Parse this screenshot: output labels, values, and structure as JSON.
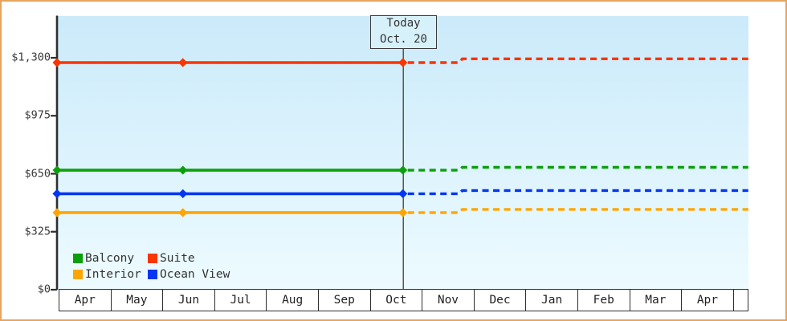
{
  "window": {
    "border_color": "#e8a45e",
    "plot_bg_top": "#cbeafa",
    "plot_bg_bottom": "#edfbff",
    "axis_color": "#2e2e2e",
    "text_color": "#3a3a3a"
  },
  "chart_data": {
    "type": "line",
    "title": "",
    "x_axis": {
      "unit": "month",
      "categories": [
        "Apr",
        "May",
        "Jun",
        "Jul",
        "Aug",
        "Sep",
        "Oct",
        "Nov",
        "Dec",
        "Jan",
        "Feb",
        "Mar",
        "Apr"
      ],
      "range_months": 13.29
    },
    "y_axis": {
      "min": 0,
      "max": 1300,
      "tick_interval": 325,
      "ticks": [
        {
          "value": 0,
          "label": "$0"
        },
        {
          "value": 325,
          "label": "$325"
        },
        {
          "value": 650,
          "label": "$650"
        },
        {
          "value": 975,
          "label": "$975"
        },
        {
          "value": 1300,
          "label": "$1,300"
        }
      ]
    },
    "today_marker": {
      "line1": "Today",
      "line2": "Oct. 20",
      "position_m": 6.65
    },
    "series": [
      {
        "name": "Balcony",
        "color": "#0ba00b",
        "price_current": 670,
        "price_forecast": 686,
        "marker_positions_m": [
          0,
          2.42,
          6.65
        ],
        "forecast_step_m": 7.73,
        "forecast_end_m": 13.29
      },
      {
        "name": "Ocean View",
        "color": "#0336f0",
        "price_current": 538,
        "price_forecast": 556,
        "marker_positions_m": [
          0,
          2.42,
          6.65
        ],
        "forecast_step_m": 7.73,
        "forecast_end_m": 13.29
      },
      {
        "name": "Interior",
        "color": "#ffa502",
        "price_current": 432,
        "price_forecast": 450,
        "marker_positions_m": [
          0,
          2.42,
          6.65
        ],
        "forecast_step_m": 7.73,
        "forecast_end_m": 13.29
      },
      {
        "name": "Suite",
        "color": "#f93500",
        "price_current": 1273,
        "price_forecast": 1294,
        "marker_positions_m": [
          0,
          2.42,
          6.65
        ],
        "forecast_step_m": 7.73,
        "forecast_end_m": 13.29
      }
    ],
    "legend": [
      {
        "label": "Balcony",
        "color": "#0ba00b"
      },
      {
        "label": "Suite",
        "color": "#f93500"
      },
      {
        "label": "Interior",
        "color": "#ffa502"
      },
      {
        "label": "Ocean View",
        "color": "#0336f0"
      }
    ],
    "layout_hints": {
      "history_style": "solid with diamond markers",
      "forecast_style": "dashed",
      "grid": "off",
      "legend_position": "bottom-left inside plot"
    }
  }
}
